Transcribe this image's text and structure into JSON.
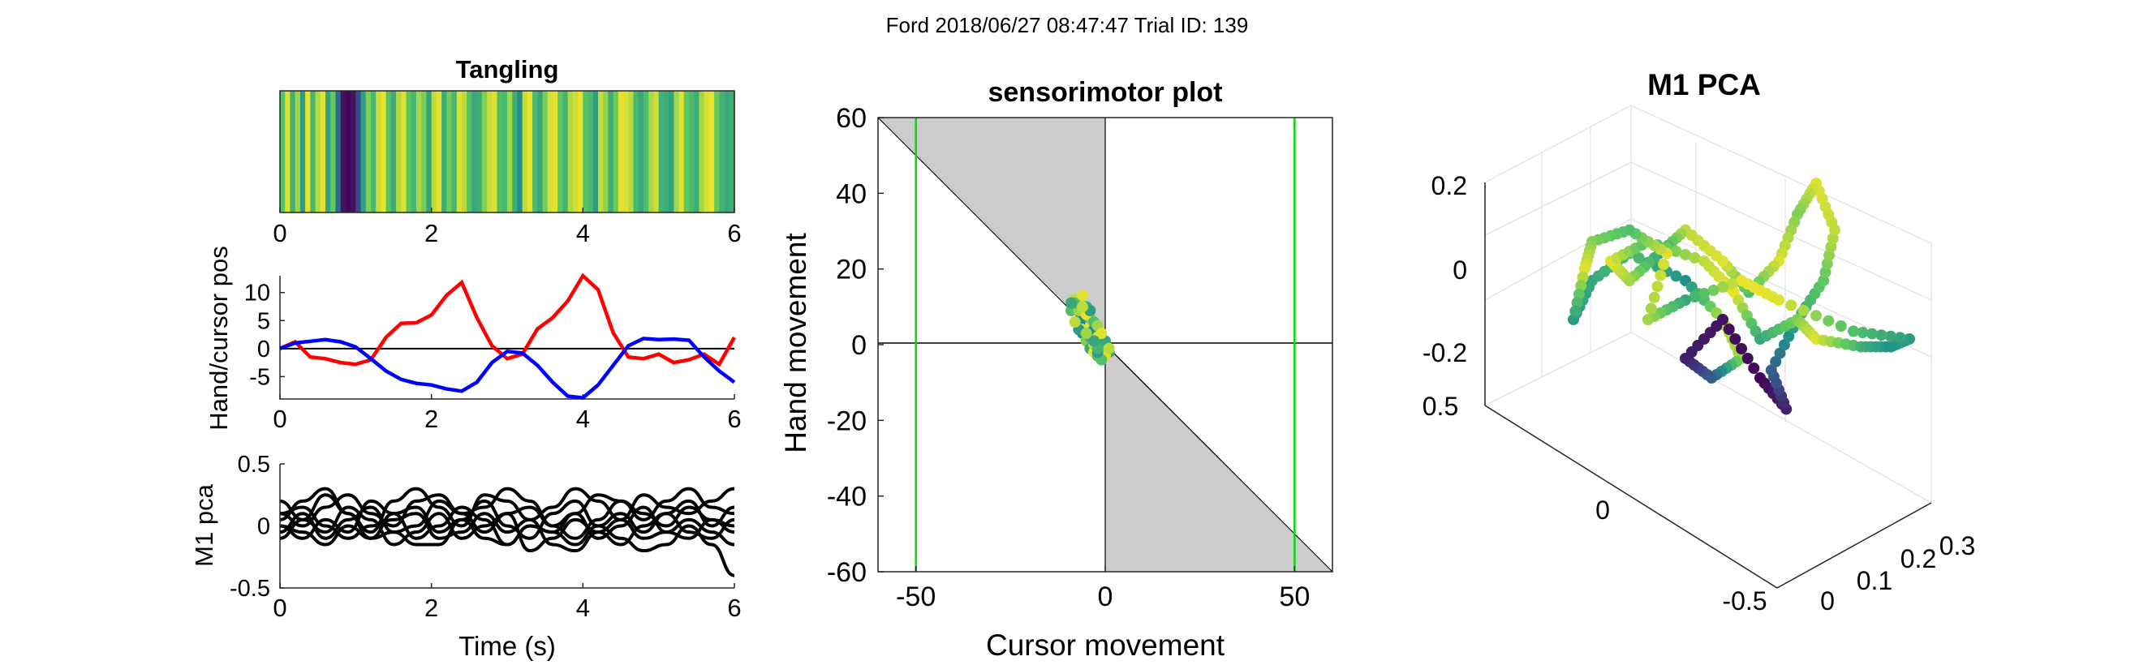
{
  "figure": {
    "suptitle": "Ford 2018/06/27 08:47:47 Trial ID: 139"
  },
  "colors": {
    "hand": "#0000ff",
    "cursor": "#ff0000",
    "m1": "#000000",
    "shade": "#cccccc",
    "boundary": "#00dd00",
    "viridis": [
      "#440154",
      "#3b528b",
      "#21918c",
      "#5ec962",
      "#fde725"
    ]
  },
  "chart_data": [
    {
      "id": "tangling",
      "type": "heatmap",
      "title": "Tangling",
      "xlim": [
        0,
        6
      ],
      "xticks": [
        "0",
        "2",
        "4",
        "6"
      ],
      "colormap": "viridis",
      "stripes": [
        0.72,
        0.95,
        0.64,
        0.85,
        0.55,
        0.97,
        0.66,
        0.88,
        0.96,
        0.58,
        0.76,
        0.35,
        0.05,
        0.02,
        0.05,
        0.22,
        0.56,
        0.8,
        0.68,
        0.92,
        0.97,
        0.72,
        0.61,
        0.88,
        0.95,
        0.73,
        0.66,
        0.86,
        0.79,
        0.58,
        0.91,
        0.96,
        0.62,
        0.78,
        0.66,
        0.95,
        0.89,
        0.71,
        0.6,
        0.63,
        0.8,
        0.92,
        0.95,
        0.7,
        0.67,
        0.85,
        0.63,
        0.48,
        0.91,
        0.97,
        0.68,
        0.6,
        0.79,
        0.94,
        0.96,
        0.74,
        0.65,
        0.88,
        0.93,
        0.97,
        0.72,
        0.68,
        0.55,
        0.91,
        0.83,
        0.62,
        0.77,
        0.96,
        0.95,
        0.89,
        0.67,
        0.6,
        0.7,
        0.87,
        0.93,
        0.64,
        0.62,
        0.58,
        0.85,
        0.95,
        0.74,
        0.68,
        0.62,
        0.86,
        0.94,
        0.97,
        0.76,
        0.65,
        0.6,
        0.63
      ]
    },
    {
      "id": "hand-cursor",
      "type": "line",
      "xlabel": "",
      "ylabel": "Hand/cursor pos",
      "xlim": [
        0,
        6
      ],
      "ylim": [
        -9,
        13
      ],
      "xticks": [
        "0",
        "2",
        "4",
        "6"
      ],
      "yticks": [
        "-5",
        "0",
        "5",
        "10"
      ],
      "x": [
        0,
        0.2,
        0.4,
        0.6,
        0.8,
        1.0,
        1.2,
        1.4,
        1.6,
        1.8,
        2.0,
        2.2,
        2.4,
        2.6,
        2.8,
        3.0,
        3.2,
        3.4,
        3.6,
        3.8,
        4.0,
        4.2,
        4.4,
        4.6,
        4.8,
        5.0,
        5.2,
        5.4,
        5.6,
        5.8,
        6.0
      ],
      "series": [
        {
          "key": "cursor",
          "values": [
            0,
            1.2,
            -1.5,
            -1.8,
            -2.5,
            -2.8,
            -2.0,
            2.0,
            4.5,
            4.6,
            6.0,
            9.5,
            11.8,
            5.5,
            0.5,
            -1.8,
            -1.0,
            3.5,
            5.5,
            8.5,
            13.0,
            10.5,
            2.8,
            -1.5,
            -1.8,
            -1.0,
            -2.5,
            -2.0,
            -1.0,
            -2.8,
            2.0
          ]
        },
        {
          "key": "hand",
          "values": [
            0,
            1.0,
            1.3,
            1.6,
            1.2,
            0.3,
            -1.8,
            -4.0,
            -5.5,
            -6.2,
            -6.5,
            -7.2,
            -7.6,
            -6.0,
            -2.5,
            -0.5,
            -0.8,
            -3.0,
            -6.0,
            -8.5,
            -8.8,
            -6.5,
            -3.0,
            0.5,
            1.8,
            1.6,
            1.7,
            1.5,
            -1.5,
            -4.0,
            -6.0
          ]
        }
      ]
    },
    {
      "id": "m1pca-time",
      "type": "line",
      "xlabel": "Time (s)",
      "ylabel": "M1 pca",
      "xlim": [
        0,
        6
      ],
      "ylim": [
        -0.5,
        0.5
      ],
      "xticks": [
        "0",
        "2",
        "4",
        "6"
      ],
      "yticks": [
        "-0.5",
        "0",
        "0.5"
      ],
      "x": [
        0,
        0.3,
        0.6,
        0.9,
        1.2,
        1.5,
        1.8,
        2.1,
        2.4,
        2.7,
        3.0,
        3.3,
        3.6,
        3.9,
        4.2,
        4.5,
        4.8,
        5.1,
        5.4,
        5.7,
        6.0
      ],
      "series": [
        {
          "values": [
            0.05,
            0.2,
            0.3,
            0.1,
            -0.05,
            0.2,
            0.3,
            0.15,
            0.0,
            0.25,
            0.2,
            0.05,
            0.15,
            0.3,
            0.2,
            0.05,
            0.25,
            0.15,
            0.1,
            0.2,
            0.3
          ]
        },
        {
          "values": [
            0.1,
            0.0,
            0.15,
            0.25,
            0.1,
            0.0,
            0.2,
            0.25,
            0.1,
            0.15,
            0.3,
            0.2,
            0.0,
            0.1,
            0.25,
            0.2,
            0.05,
            0.2,
            0.3,
            0.15,
            0.1
          ]
        },
        {
          "values": [
            -0.05,
            0.1,
            -0.1,
            0.05,
            0.15,
            -0.05,
            0.0,
            0.2,
            0.1,
            -0.05,
            0.1,
            0.15,
            0.0,
            -0.1,
            0.05,
            0.2,
            0.1,
            0.0,
            0.15,
            0.05,
            -0.05
          ]
        },
        {
          "values": [
            0.2,
            0.05,
            0.25,
            0.1,
            -0.1,
            0.1,
            0.15,
            -0.05,
            0.05,
            0.2,
            0.0,
            -0.1,
            0.1,
            0.2,
            0.0,
            0.1,
            -0.05,
            0.1,
            0.2,
            0.0,
            0.15
          ]
        },
        {
          "values": [
            0.0,
            -0.1,
            0.05,
            -0.05,
            0.2,
            0.1,
            -0.1,
            0.0,
            0.15,
            0.05,
            -0.15,
            0.0,
            -0.05,
            0.1,
            -0.1,
            0.0,
            0.15,
            -0.05,
            -0.1,
            0.05,
            0.0
          ]
        },
        {
          "values": [
            -0.1,
            0.05,
            -0.05,
            0.15,
            0.05,
            -0.15,
            -0.05,
            0.1,
            -0.1,
            0.0,
            0.1,
            -0.2,
            -0.1,
            0.05,
            -0.05,
            -0.15,
            0.0,
            0.1,
            -0.05,
            -0.1,
            0.05
          ]
        },
        {
          "values": [
            0.1,
            0.15,
            0.0,
            -0.1,
            0.0,
            0.05,
            0.1,
            -0.1,
            -0.05,
            0.1,
            -0.05,
            0.05,
            -0.15,
            -0.2,
            -0.05,
            0.05,
            -0.1,
            -0.05,
            0.05,
            -0.05,
            -0.15
          ]
        },
        {
          "values": [
            0.0,
            -0.05,
            -0.15,
            0.0,
            -0.1,
            -0.05,
            -0.15,
            -0.15,
            0.05,
            -0.1,
            -0.15,
            0.0,
            -0.05,
            -0.15,
            0.0,
            -0.1,
            -0.2,
            -0.15,
            0.0,
            -0.15,
            -0.4
          ]
        }
      ]
    },
    {
      "id": "sensorimotor",
      "type": "scatter",
      "title": "sensorimotor plot",
      "xlabel": "Cursor movement",
      "ylabel": "Hand movement",
      "xlim": [
        -60,
        60
      ],
      "ylim": [
        -60,
        60
      ],
      "xticks": [
        "-50",
        "0",
        "50"
      ],
      "yticks": [
        "-60",
        "-40",
        "-20",
        "0",
        "20",
        "40",
        "60"
      ],
      "vlines": [
        -50,
        50
      ],
      "points": [
        [
          -8,
          12,
          0.9
        ],
        [
          -9,
          9,
          0.7
        ],
        [
          -7,
          6,
          0.95
        ],
        [
          -6,
          3,
          0.5
        ],
        [
          -5,
          1,
          0.8
        ],
        [
          -4,
          -1,
          0.6
        ],
        [
          -3,
          -2,
          0.97
        ],
        [
          -2,
          -3,
          0.7
        ],
        [
          -1,
          -2,
          0.4
        ],
        [
          0,
          -1,
          0.85
        ],
        [
          1,
          -2,
          0.6
        ],
        [
          0,
          -3,
          0.95
        ],
        [
          -1,
          -4,
          0.7
        ],
        [
          -2,
          -2,
          0.55
        ],
        [
          -3,
          0,
          0.9
        ],
        [
          -4,
          2,
          0.65
        ],
        [
          -5,
          4,
          0.97
        ],
        [
          -6,
          7,
          0.5
        ],
        [
          -7,
          9,
          0.85
        ],
        [
          -8,
          11,
          0.7
        ],
        [
          -6,
          13,
          0.95
        ],
        [
          -5,
          10,
          0.6
        ],
        [
          -4,
          7,
          0.8
        ],
        [
          -3,
          4,
          0.5
        ],
        [
          -2,
          2,
          0.97
        ],
        [
          -1,
          0,
          0.7
        ],
        [
          0,
          1,
          0.6
        ],
        [
          1,
          -1,
          0.9
        ],
        [
          -7,
          4,
          0.55
        ],
        [
          -8,
          6,
          0.9
        ],
        [
          -9,
          11,
          0.6
        ],
        [
          -5,
          8,
          0.97
        ],
        [
          -3,
          6,
          0.7
        ],
        [
          -2,
          5,
          0.85
        ],
        [
          -4,
          9,
          0.55
        ],
        [
          -6,
          10,
          0.9
        ],
        [
          -2,
          -1,
          0.65
        ],
        [
          -1,
          3,
          0.95
        ],
        [
          -3,
          1,
          0.6
        ],
        [
          -5,
          3,
          0.85
        ]
      ]
    },
    {
      "id": "m1pca-3d",
      "type": "scatter",
      "title": "M1 PCA",
      "zticks": [
        "0.2",
        "0",
        "-0.2"
      ],
      "yticks": [
        "0.5",
        "0",
        "-0.5"
      ],
      "xticks": [
        "0",
        "0.1",
        "0.2",
        "0.3"
      ],
      "trajectory": [
        [
          -0.35,
          -0.05,
          0.55
        ],
        [
          -0.3,
          0.05,
          0.6
        ],
        [
          -0.2,
          0.12,
          0.7
        ],
        [
          -0.05,
          0.05,
          0.5
        ],
        [
          0.05,
          -0.05,
          0.9
        ],
        [
          0.1,
          -0.15,
          0.85
        ],
        [
          0.02,
          -0.2,
          0.3
        ],
        [
          -0.05,
          -0.15,
          0.1
        ],
        [
          0.05,
          -0.05,
          0.05
        ],
        [
          0.15,
          -0.2,
          0.02
        ],
        [
          0.22,
          -0.28,
          0.1
        ],
        [
          0.18,
          -0.18,
          0.3
        ],
        [
          0.25,
          -0.05,
          0.6
        ],
        [
          0.32,
          0.05,
          0.75
        ],
        [
          0.35,
          0.18,
          0.9
        ],
        [
          0.3,
          0.3,
          0.95
        ],
        [
          0.25,
          0.22,
          0.8
        ],
        [
          0.2,
          0.1,
          0.95
        ],
        [
          0.12,
          0.02,
          0.7
        ],
        [
          0.05,
          0.1,
          0.95
        ],
        [
          -0.05,
          0.18,
          0.9
        ],
        [
          -0.12,
          0.12,
          0.6
        ],
        [
          -0.2,
          0.05,
          0.85
        ],
        [
          -0.25,
          0.1,
          0.95
        ],
        [
          -0.15,
          0.15,
          0.7
        ],
        [
          0.0,
          0.1,
          0.9
        ],
        [
          0.08,
          0.02,
          0.97
        ],
        [
          0.15,
          -0.1,
          0.6
        ],
        [
          0.25,
          -0.05,
          0.8
        ],
        [
          0.3,
          -0.1,
          0.95
        ],
        [
          0.42,
          -0.12,
          0.65
        ],
        [
          0.5,
          -0.12,
          0.5
        ],
        [
          0.55,
          -0.1,
          0.55
        ],
        [
          0.4,
          -0.08,
          0.7
        ],
        [
          0.2,
          0.0,
          0.95
        ],
        [
          0.1,
          0.05,
          0.97
        ],
        [
          -0.05,
          0.0,
          0.6
        ],
        [
          -0.15,
          -0.05,
          0.85
        ],
        [
          -0.1,
          0.12,
          0.95
        ],
        [
          -0.2,
          0.18,
          0.7
        ],
        [
          -0.3,
          0.15,
          0.8
        ],
        [
          -0.32,
          0.08,
          0.95
        ]
      ]
    }
  ]
}
